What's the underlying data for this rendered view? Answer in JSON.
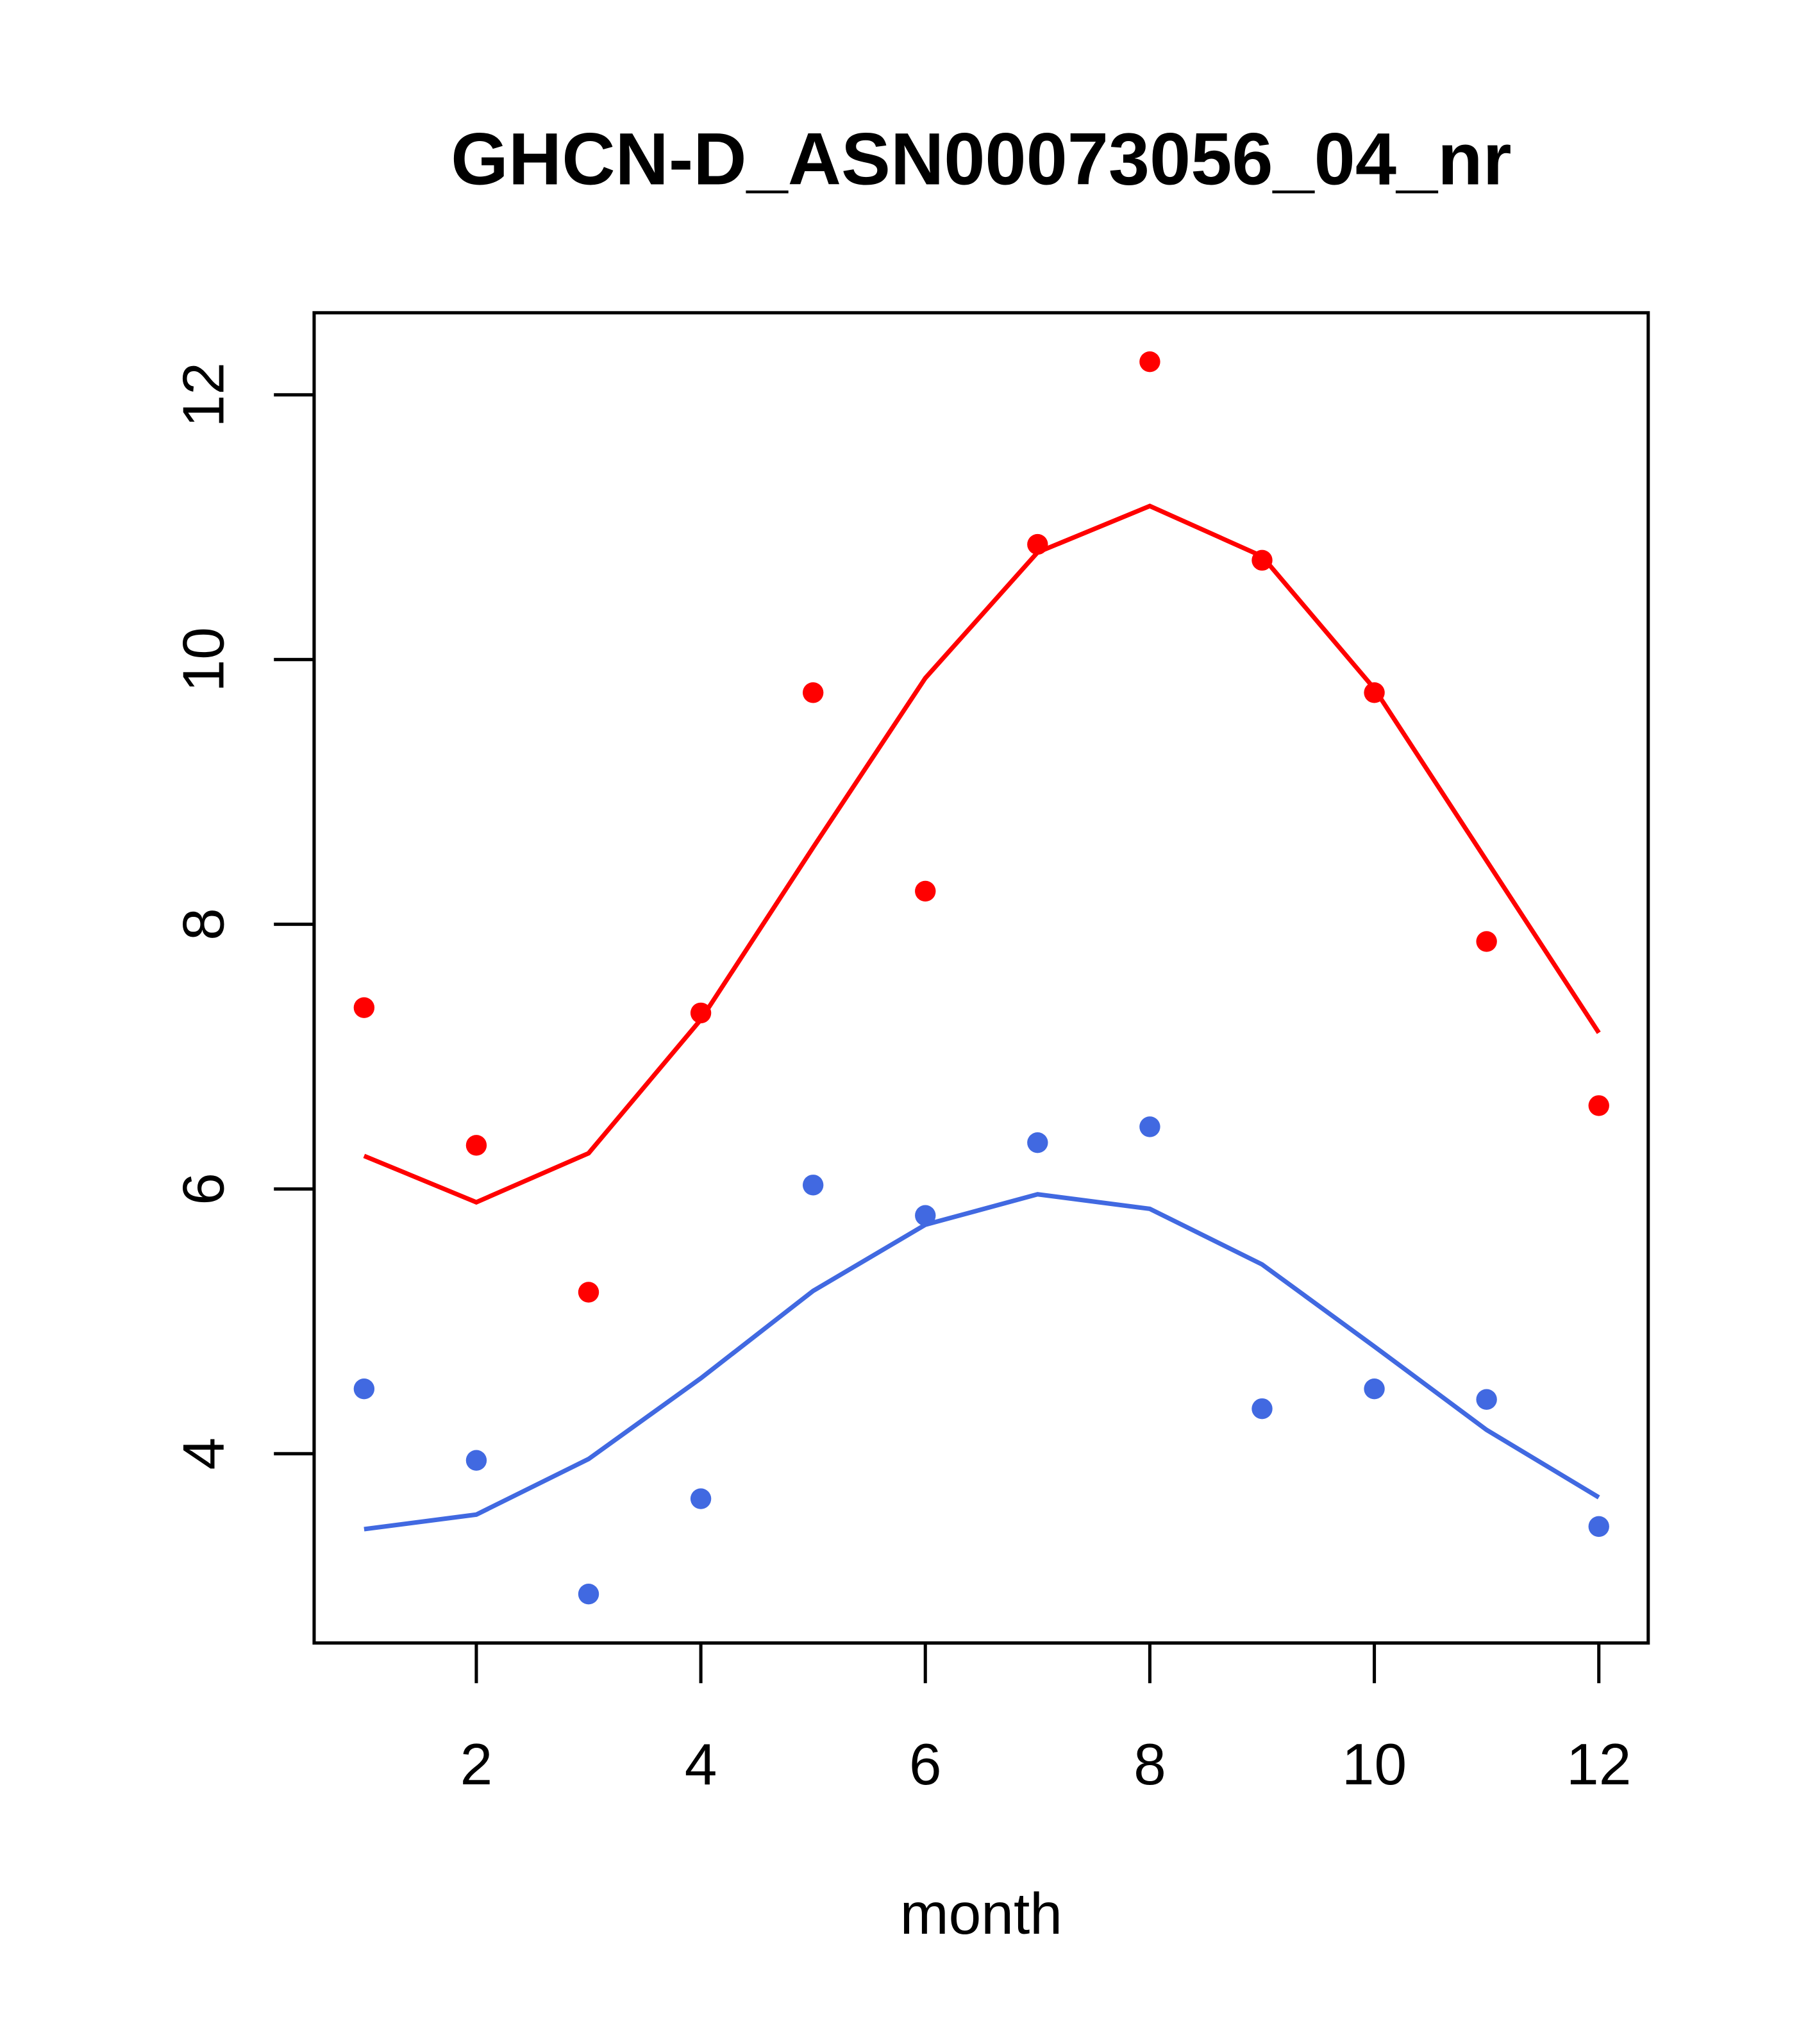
{
  "chart_data": {
    "type": "scatter",
    "title": "GHCN-D_ASN00073056_04_nr",
    "xlabel": "month",
    "ylabel": "",
    "xlim": [
      0.555,
      12.44
    ],
    "ylim": [
      2.57,
      12.62
    ],
    "xticks": [
      2,
      4,
      6,
      8,
      10,
      12
    ],
    "yticks": [
      4,
      6,
      8,
      10,
      12
    ],
    "grid": false,
    "x": [
      1,
      2,
      3,
      4,
      5,
      6,
      7,
      8,
      9,
      10,
      11,
      12
    ],
    "series": [
      {
        "name": "red points",
        "kind": "points",
        "color": "#FF0000",
        "values": [
          7.37,
          6.33,
          5.22,
          7.33,
          9.75,
          8.25,
          10.87,
          12.25,
          10.75,
          9.75,
          7.87,
          6.63
        ]
      },
      {
        "name": "red line",
        "kind": "line",
        "color": "#FF0000",
        "values": [
          6.25,
          5.9,
          6.27,
          7.28,
          8.58,
          9.86,
          10.81,
          11.16,
          10.78,
          9.78,
          8.48,
          7.18
        ]
      },
      {
        "name": "blue points",
        "kind": "points",
        "color": "#4169E1",
        "values": [
          4.49,
          3.95,
          2.94,
          3.66,
          6.03,
          5.8,
          6.35,
          6.47,
          4.34,
          4.49,
          4.41,
          3.45
        ]
      },
      {
        "name": "blue line",
        "kind": "line",
        "color": "#4169E1",
        "values": [
          3.43,
          3.54,
          3.96,
          4.57,
          5.23,
          5.73,
          5.96,
          5.85,
          5.43,
          4.81,
          4.18,
          3.67
        ]
      }
    ]
  }
}
